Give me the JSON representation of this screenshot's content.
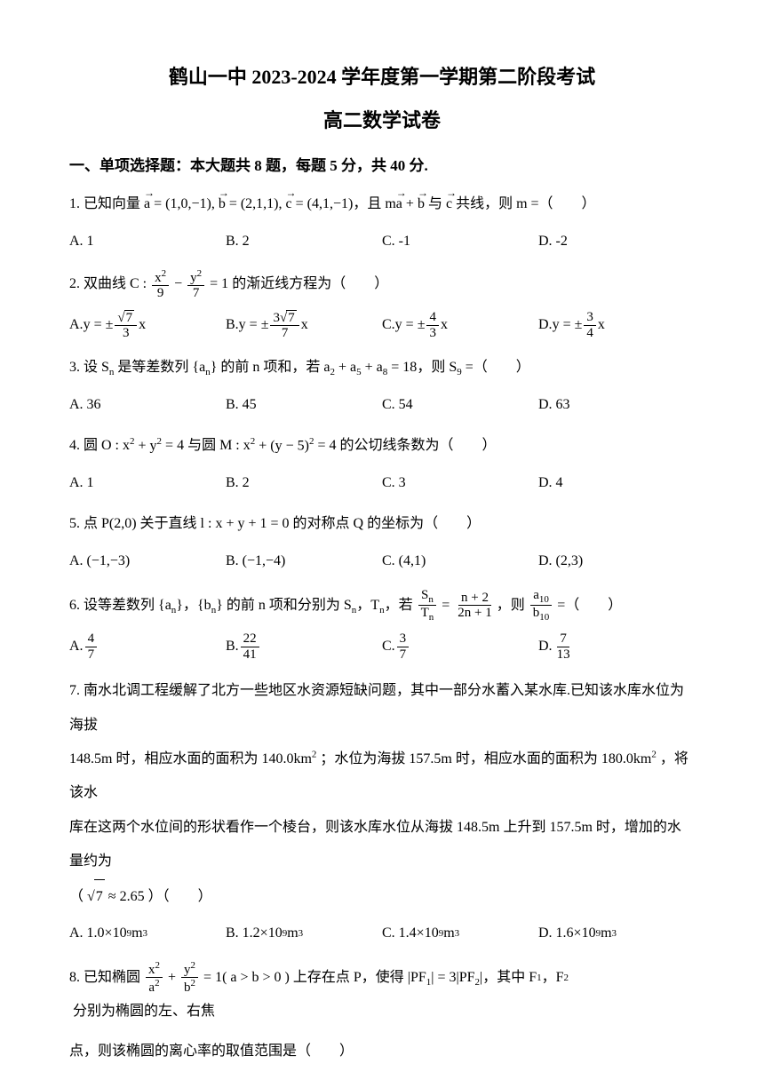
{
  "title_main": "鹤山一中 2023-2024 学年度第一学期第二阶段考试",
  "title_sub": "高二数学试卷",
  "section1_header": "一、单项选择题：本大题共 8 题，每题 5 分，共 40 分.",
  "q1": {
    "prefix": "1. 已知向量 ",
    "mid": "，且 ",
    "suffix": " 共线，则 m =（　　）",
    "A": "A. 1",
    "B": "B. 2",
    "C": "C. -1",
    "D": "D. -2"
  },
  "q2": {
    "prefix": "2. 双曲线 C : ",
    "suffix": " 的渐近线方程为（　　）",
    "A": "A. ",
    "B": "B. ",
    "C": "C. ",
    "D": "D. "
  },
  "q3": {
    "prefix": "3. 设 ",
    "mid1": " 是等差数列 ",
    "mid2": " 的前 n 项和，若 ",
    "mid3": "，则 ",
    "suffix": " =（　　）",
    "A": "A. 36",
    "B": "B. 45",
    "C": "C. 54",
    "D": "D. 63"
  },
  "q4": {
    "prefix": "4. 圆 O : x",
    "mid": " = 4 与圆 M : x",
    "suffix": " = 4 的公切线条数为（　　）",
    "A": "A. 1",
    "B": "B. 2",
    "C": "C. 3",
    "D": "D. 4"
  },
  "q5": {
    "prefix": "5. 点 P(2,0) 关于直线 l : x + y + 1 = 0 的对称点 Q 的坐标为（　　）",
    "A": "A. (−1,−3)",
    "B": "B. (−1,−4)",
    "C": "C. (4,1)",
    "D": "D. (2,3)"
  },
  "q6": {
    "prefix": "6. 设等差数列 ",
    "mid1": "，",
    "mid2": " 的前 n 项和分别为 ",
    "mid3": "，若 ",
    "mid4": "，则 ",
    "suffix": " =（　　）",
    "A": "A. ",
    "B": "B. ",
    "C": "C. ",
    "D": "D. "
  },
  "q7": {
    "line1": "7. 南水北调工程缓解了北方一些地区水资源短缺问题，其中一部分水蓄入某水库.已知该水库水位为海拔",
    "line2a": "148.5m 时，相应水面的面积为 140.0km",
    "line2b": "；水位为海拔 157.5m 时，相应水面的面积为 180.0km",
    "line2c": "，将该水",
    "line3": "库在这两个水位间的形状看作一个棱台，则该水库水位从海拔 148.5m 上升到 157.5m 时，增加的水量约为",
    "line4a": "（ √",
    "line4b": " ≈ 2.65 ）（　　）",
    "A": "A. 1.0×10",
    "B": "B. 1.2×10",
    "C": "C. 1.4×10",
    "D": "D. 1.6×10",
    "unit": " m"
  },
  "q8": {
    "prefix": "8. 已知椭圆 ",
    "mid1": " = 1( a > b > 0 ) 上存在点 P，使得 ",
    "mid2": "，其中 F",
    "mid3": "，F",
    "suffix": " 分别为椭圆的左、右焦",
    "line2": "点，则该椭圆的离心率的取值范围是（　　）"
  },
  "colors": {
    "text": "#000000",
    "background": "#ffffff"
  },
  "fonts": {
    "body_size": 16,
    "title_size": 22,
    "section_size": 17
  }
}
